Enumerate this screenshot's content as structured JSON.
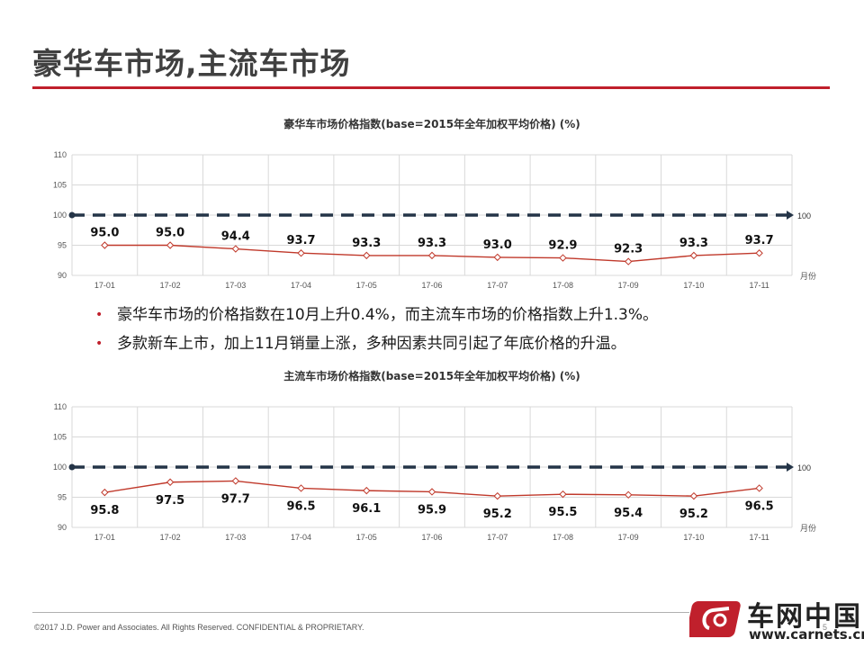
{
  "slide": {
    "title": "豪华车市场,主流车市场",
    "bullets": [
      "豪华车市场的价格指数在10月上升0.4%，而主流车市场的价格指数上升1.3%。",
      "多款新车上市，加上11月销量上涨，多种因素共同引起了年底价格的升温。"
    ],
    "copyright": "©2017 J.D. Power and Associates. All Rights Reserved. CONFIDENTIAL & PROPRIETARY.",
    "page_number": "5",
    "logo_text": "车网中国",
    "logo_url": "www.carnets.cn"
  },
  "colors": {
    "accent": "#c0202c",
    "line": "#c0392b",
    "baseline": "#243447",
    "grid": "#d9d9d9"
  },
  "chart_data": [
    {
      "type": "line",
      "title": "豪华车市场价格指数(base=2015年全年加权平均价格) (%)",
      "categories": [
        "17-01",
        "17-02",
        "17-03",
        "17-04",
        "17-05",
        "17-06",
        "17-07",
        "17-08",
        "17-09",
        "17-10",
        "17-11"
      ],
      "values": [
        95.0,
        95.0,
        94.4,
        93.7,
        93.3,
        93.3,
        93.0,
        92.9,
        92.3,
        93.3,
        93.7
      ],
      "value_labels": [
        "95.0",
        "95.0",
        "94.4",
        "93.7",
        "93.3",
        "93.3",
        "93.0",
        "92.9",
        "92.3",
        "93.3",
        "93.7"
      ],
      "yticks": [
        "110",
        "105",
        "100",
        "95",
        "90"
      ],
      "ylim": [
        90,
        110
      ],
      "baseline": 100,
      "baseline_label": "100",
      "xlabel": "月份",
      "label_position": "above",
      "grid": true
    },
    {
      "type": "line",
      "title": "主流车市场价格指数(base=2015年全年加权平均价格) (%)",
      "categories": [
        "17-01",
        "17-02",
        "17-03",
        "17-04",
        "17-05",
        "17-06",
        "17-07",
        "17-08",
        "17-09",
        "17-10",
        "17-11"
      ],
      "values": [
        95.8,
        97.5,
        97.7,
        96.5,
        96.1,
        95.9,
        95.2,
        95.5,
        95.4,
        95.2,
        96.5
      ],
      "value_labels": [
        "95.8",
        "97.5",
        "97.7",
        "96.5",
        "96.1",
        "95.9",
        "95.2",
        "95.5",
        "95.4",
        "95.2",
        "96.5"
      ],
      "yticks": [
        "110",
        "105",
        "100",
        "95",
        "90"
      ],
      "ylim": [
        90,
        110
      ],
      "baseline": 100,
      "baseline_label": "100",
      "xlabel": "月份",
      "label_position": "below",
      "grid": true
    }
  ]
}
